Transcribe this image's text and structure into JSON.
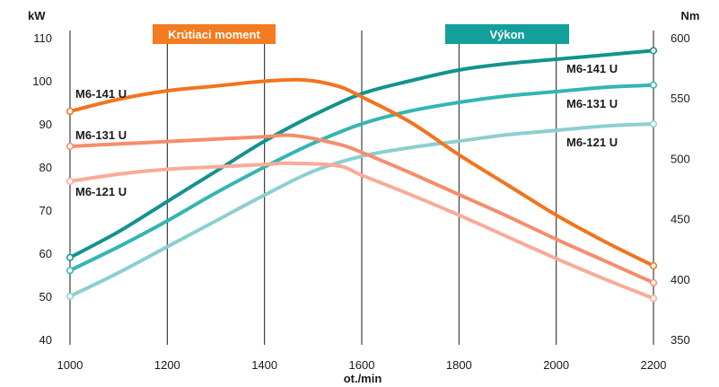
{
  "chart_data": {
    "type": "line",
    "x_label": "ot./min",
    "left_axis": {
      "unit": "kW",
      "ylim": [
        40,
        110
      ],
      "ticks": [
        40,
        50,
        60,
        70,
        80,
        90,
        100,
        110
      ]
    },
    "right_axis": {
      "unit": "Nm",
      "ylim": [
        350,
        600
      ],
      "ticks": [
        350,
        400,
        450,
        500,
        550,
        600
      ]
    },
    "x_ticks": [
      1000,
      1200,
      1400,
      1600,
      1800,
      2000,
      2200
    ],
    "xlim": [
      1000,
      2200
    ],
    "grid": "vertical",
    "groups": [
      {
        "name": "Krútiaci moment",
        "axis": "right",
        "color": "#f47b20"
      },
      {
        "name": "Výkon",
        "axis": "left",
        "color": "#14a09a"
      }
    ],
    "series": [
      {
        "name": "M6-141 U",
        "group": "Krútiaci moment",
        "axis": "right",
        "color": "#f2741e",
        "points": [
          [
            1000,
            539
          ],
          [
            1100,
            549
          ],
          [
            1200,
            556
          ],
          [
            1300,
            560
          ],
          [
            1400,
            564
          ],
          [
            1480,
            565
          ],
          [
            1550,
            560
          ],
          [
            1600,
            551
          ],
          [
            1700,
            530
          ],
          [
            1800,
            503
          ],
          [
            1900,
            478
          ],
          [
            2000,
            453
          ],
          [
            2100,
            431
          ],
          [
            2200,
            411
          ]
        ]
      },
      {
        "name": "M6-131 U",
        "group": "Krútiaci moment",
        "axis": "right",
        "color": "#f58d6b",
        "points": [
          [
            1000,
            510
          ],
          [
            1100,
            512
          ],
          [
            1200,
            514
          ],
          [
            1300,
            516
          ],
          [
            1400,
            518
          ],
          [
            1460,
            519
          ],
          [
            1550,
            512
          ],
          [
            1600,
            505
          ],
          [
            1700,
            488
          ],
          [
            1800,
            470
          ],
          [
            1900,
            452
          ],
          [
            2000,
            433
          ],
          [
            2100,
            415
          ],
          [
            2200,
            397
          ]
        ]
      },
      {
        "name": "M6-121 U",
        "group": "Krútiaci moment",
        "axis": "right",
        "color": "#f9ab98",
        "points": [
          [
            1000,
            481
          ],
          [
            1100,
            487
          ],
          [
            1200,
            491
          ],
          [
            1300,
            493
          ],
          [
            1400,
            495
          ],
          [
            1450,
            496
          ],
          [
            1550,
            494
          ],
          [
            1600,
            486
          ],
          [
            1700,
            470
          ],
          [
            1800,
            453
          ],
          [
            1900,
            435
          ],
          [
            2000,
            417
          ],
          [
            2100,
            400
          ],
          [
            2200,
            384
          ]
        ]
      },
      {
        "name": "M6-141 U",
        "group": "Výkon",
        "axis": "left",
        "color": "#11938e",
        "points": [
          [
            1000,
            59
          ],
          [
            1100,
            65
          ],
          [
            1200,
            72
          ],
          [
            1300,
            79
          ],
          [
            1400,
            86
          ],
          [
            1500,
            92
          ],
          [
            1600,
            97
          ],
          [
            1700,
            100
          ],
          [
            1800,
            102.5
          ],
          [
            1900,
            104
          ],
          [
            2000,
            105
          ],
          [
            2100,
            106
          ],
          [
            2200,
            107
          ]
        ]
      },
      {
        "name": "M6-131 U",
        "group": "Výkon",
        "axis": "left",
        "color": "#33b5b3",
        "points": [
          [
            1000,
            56
          ],
          [
            1100,
            61.5
          ],
          [
            1200,
            67.5
          ],
          [
            1300,
            74
          ],
          [
            1400,
            80
          ],
          [
            1500,
            85.5
          ],
          [
            1600,
            90
          ],
          [
            1700,
            93
          ],
          [
            1800,
            95
          ],
          [
            1900,
            96.5
          ],
          [
            2000,
            97.5
          ],
          [
            2100,
            98.5
          ],
          [
            2200,
            99
          ]
        ]
      },
      {
        "name": "M6-121 U",
        "group": "Výkon",
        "axis": "left",
        "color": "#8ccfd0",
        "points": [
          [
            1000,
            50
          ],
          [
            1100,
            55.5
          ],
          [
            1200,
            61.5
          ],
          [
            1300,
            67.5
          ],
          [
            1400,
            73.5
          ],
          [
            1500,
            79
          ],
          [
            1600,
            82.5
          ],
          [
            1700,
            84.5
          ],
          [
            1800,
            86
          ],
          [
            1900,
            87.5
          ],
          [
            2000,
            88.5
          ],
          [
            2100,
            89.5
          ],
          [
            2200,
            90
          ]
        ]
      }
    ],
    "annotations": {
      "torque_labels": [
        "M6-141 U",
        "M6-131 U",
        "M6-121 U"
      ],
      "power_labels": [
        "M6-141 U",
        "M6-131 U",
        "M6-121 U"
      ]
    }
  }
}
